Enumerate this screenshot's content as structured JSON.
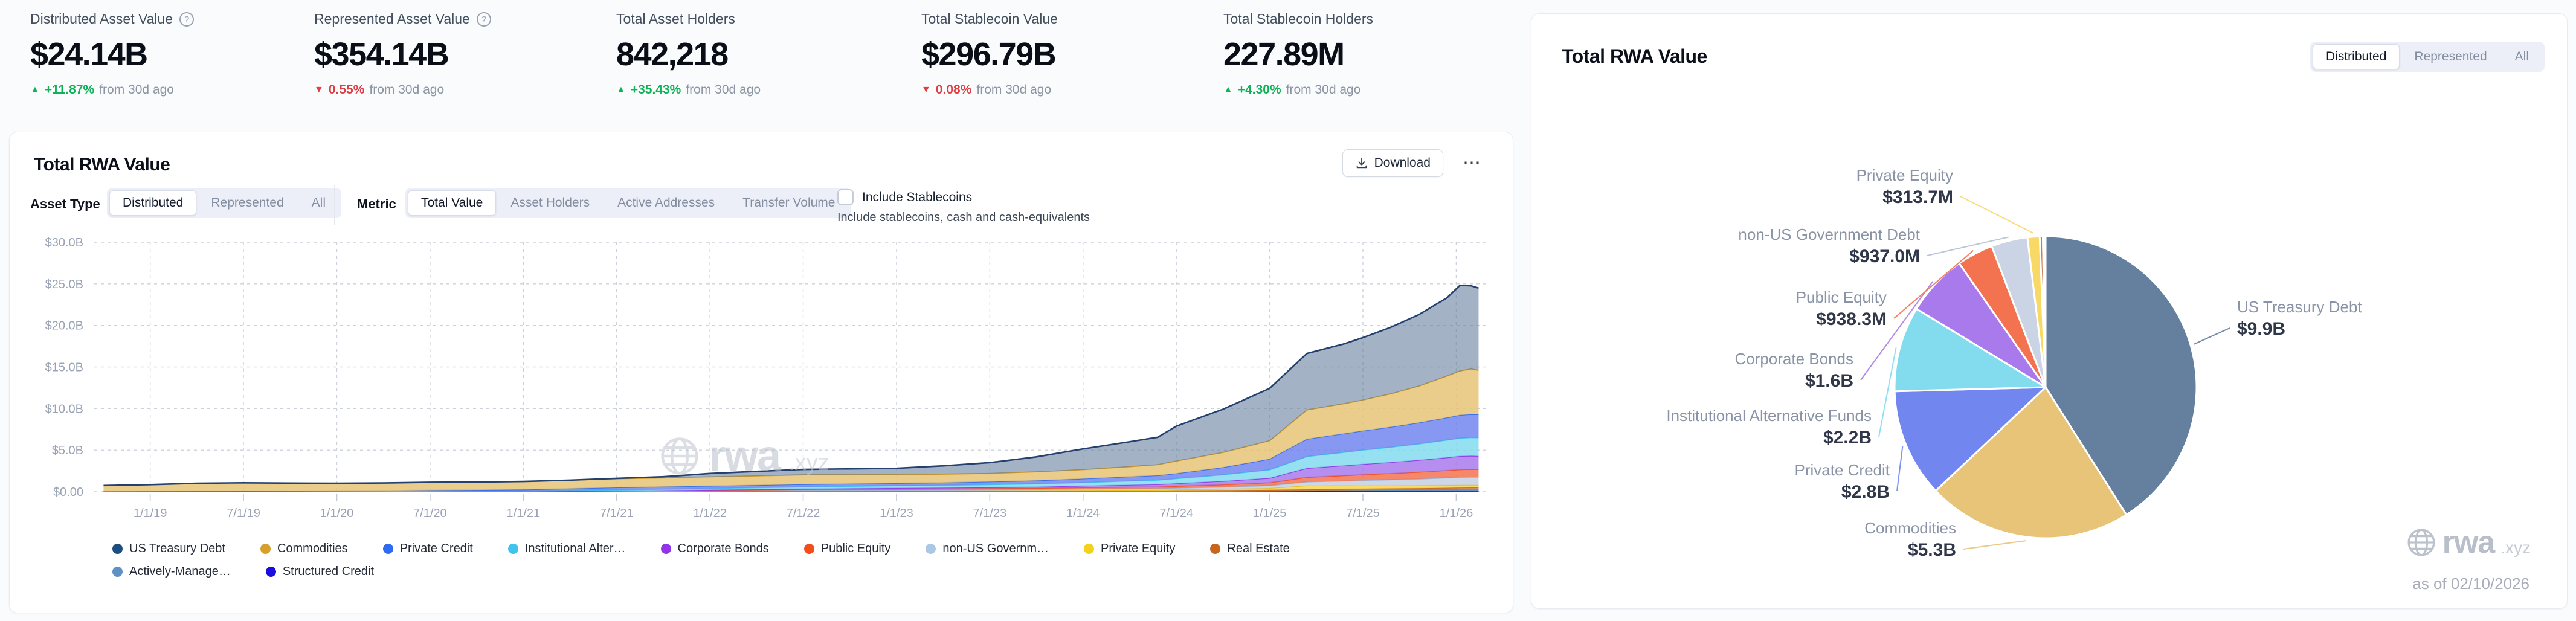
{
  "stats": [
    {
      "label": "Distributed Asset Value",
      "info_icon": true,
      "value": "$24.14B",
      "delta": {
        "direction": "up",
        "value": "+11.87%",
        "suffix": "from 30d ago"
      }
    },
    {
      "label": "Represented Asset Value",
      "info_icon": true,
      "value": "$354.14B",
      "delta": {
        "direction": "down",
        "value": "0.55%",
        "suffix": "from 30d ago"
      }
    },
    {
      "label": "Total Asset Holders",
      "info_icon": false,
      "value": "842,218",
      "delta": {
        "direction": "up",
        "value": "+35.43%",
        "suffix": "from 30d ago"
      }
    },
    {
      "label": "Total Stablecoin Value",
      "info_icon": false,
      "value": "$296.79B",
      "delta": {
        "direction": "down",
        "value": "0.08%",
        "suffix": "from 30d ago"
      }
    },
    {
      "label": "Total Stablecoin Holders",
      "info_icon": false,
      "value": "227.89M",
      "delta": {
        "direction": "up",
        "value": "+4.30%",
        "suffix": "from 30d ago"
      }
    }
  ],
  "colors": {
    "up": "#0fb257",
    "down": "#e03e43",
    "grid": "#ccd1da",
    "axis_text": "#9aa3b5"
  },
  "left_card": {
    "title": "Total RWA Value",
    "download_button": "Download",
    "menu_button": "⋯",
    "asset_type": {
      "label": "Asset Type",
      "options": [
        "Distributed",
        "Represented",
        "All"
      ],
      "selected": "Distributed"
    },
    "metric": {
      "label": "Metric",
      "options": [
        "Total Value",
        "Asset Holders",
        "Active Addresses",
        "Transfer Volume"
      ],
      "selected": "Total Value"
    },
    "stablecoin_checkbox": {
      "label": "Include Stablecoins",
      "caption": "Include stablecoins, cash and cash-equivalents",
      "checked": false
    },
    "watermark": {
      "text": "rwa",
      "suffix": ".xyz"
    }
  },
  "right_card": {
    "title": "Total RWA Value",
    "toggle": {
      "options": [
        "Distributed",
        "Represented",
        "All"
      ],
      "selected": "Distributed"
    },
    "watermark": {
      "text": "rwa",
      "suffix": ".xyz"
    },
    "as_of": "as of 02/10/2026"
  },
  "chart_data": [
    {
      "type": "area",
      "stacked": true,
      "grid": true,
      "title": "Total RWA Value",
      "ylim": [
        0,
        30
      ],
      "y_ticks": [
        {
          "v": 30,
          "label": "$30.0B"
        },
        {
          "v": 25,
          "label": "$25.0B"
        },
        {
          "v": 20,
          "label": "$20.0B"
        },
        {
          "v": 15,
          "label": "$15.0B"
        },
        {
          "v": 10,
          "label": "$10.0B"
        },
        {
          "v": 5,
          "label": "$5.0B"
        },
        {
          "v": 0,
          "label": "$0.00"
        }
      ],
      "x_range": [
        2018.7,
        2026.18
      ],
      "x_ticks": [
        {
          "v": 2019.0,
          "label": "1/1/19"
        },
        {
          "v": 2019.5,
          "label": "7/1/19"
        },
        {
          "v": 2020.0,
          "label": "1/1/20"
        },
        {
          "v": 2020.5,
          "label": "7/1/20"
        },
        {
          "v": 2021.0,
          "label": "1/1/21"
        },
        {
          "v": 2021.5,
          "label": "7/1/21"
        },
        {
          "v": 2022.0,
          "label": "1/1/22"
        },
        {
          "v": 2022.5,
          "label": "7/1/22"
        },
        {
          "v": 2023.0,
          "label": "1/1/23"
        },
        {
          "v": 2023.5,
          "label": "7/1/23"
        },
        {
          "v": 2024.0,
          "label": "1/1/24"
        },
        {
          "v": 2024.5,
          "label": "7/1/24"
        },
        {
          "v": 2025.0,
          "label": "1/1/25"
        },
        {
          "v": 2025.5,
          "label": "7/1/25"
        },
        {
          "v": 2026.0,
          "label": "1/1/26"
        }
      ],
      "x": [
        2018.75,
        2019.0,
        2019.25,
        2019.5,
        2019.75,
        2020.0,
        2020.25,
        2020.5,
        2020.75,
        2021.0,
        2021.25,
        2021.5,
        2021.75,
        2022.0,
        2022.25,
        2022.5,
        2022.75,
        2023.0,
        2023.25,
        2023.5,
        2023.75,
        2024.0,
        2024.25,
        2024.4,
        2024.5,
        2024.75,
        2025.0,
        2025.2,
        2025.4,
        2025.5,
        2025.65,
        2025.8,
        2025.95,
        2026.02,
        2026.08,
        2026.12
      ],
      "series": [
        {
          "name": "Structured Credit",
          "color": "#1a0de0",
          "fill": "rgba(26,13,224,0.85)",
          "values": [
            0,
            0,
            0,
            0,
            0,
            0,
            0,
            0,
            0,
            0,
            0,
            0,
            0,
            0,
            0,
            0,
            0,
            0,
            0,
            0,
            0,
            0.01,
            0.01,
            0.01,
            0.02,
            0.04,
            0.06,
            0.07,
            0.08,
            0.09,
            0.1,
            0.1,
            0.11,
            0.12,
            0.12,
            0.12
          ]
        },
        {
          "name": "Actively-Managed",
          "color": "#5e91c4",
          "fill": "rgba(94,145,196,0.8)",
          "values": [
            0,
            0,
            0,
            0,
            0,
            0,
            0,
            0,
            0,
            0,
            0,
            0,
            0,
            0,
            0,
            0,
            0,
            0,
            0,
            0,
            0,
            0,
            0,
            0,
            0.01,
            0.02,
            0.03,
            0.06,
            0.08,
            0.1,
            0.12,
            0.14,
            0.16,
            0.17,
            0.18,
            0.18
          ]
        },
        {
          "name": "Real Estate",
          "color": "#c9661e",
          "fill": "rgba(201,122,62,0.85)",
          "values": [
            0,
            0,
            0,
            0,
            0,
            0.01,
            0.01,
            0.02,
            0.02,
            0.03,
            0.04,
            0.05,
            0.07,
            0.1,
            0.12,
            0.13,
            0.12,
            0.1,
            0.1,
            0.1,
            0.1,
            0.11,
            0.12,
            0.12,
            0.13,
            0.13,
            0.14,
            0.15,
            0.16,
            0.17,
            0.17,
            0.18,
            0.19,
            0.2,
            0.2,
            0.2
          ]
        },
        {
          "name": "Private Equity",
          "color": "#e3c21c",
          "fill": "rgba(248,215,90,0.9)",
          "values": [
            0,
            0,
            0,
            0,
            0,
            0,
            0,
            0,
            0,
            0,
            0,
            0,
            0.01,
            0.02,
            0.02,
            0.03,
            0.04,
            0.05,
            0.05,
            0.06,
            0.07,
            0.08,
            0.09,
            0.1,
            0.1,
            0.15,
            0.2,
            0.45,
            0.42,
            0.38,
            0.35,
            0.33,
            0.32,
            0.32,
            0.31,
            0.31
          ]
        },
        {
          "name": "non-US Government Debt",
          "color": "#9fb4d6",
          "fill": "rgba(202,212,228,0.92)",
          "values": [
            0,
            0,
            0,
            0,
            0,
            0,
            0,
            0,
            0,
            0,
            0,
            0.01,
            0.02,
            0.03,
            0.04,
            0.05,
            0.06,
            0.07,
            0.08,
            0.1,
            0.11,
            0.13,
            0.15,
            0.16,
            0.18,
            0.22,
            0.3,
            0.45,
            0.55,
            0.62,
            0.7,
            0.78,
            0.88,
            0.92,
            0.94,
            0.94
          ]
        },
        {
          "name": "Public Equity",
          "color": "#f44d1c",
          "fill": "rgba(243,114,80,0.85)",
          "values": [
            0,
            0,
            0,
            0,
            0,
            0,
            0,
            0,
            0.01,
            0.01,
            0.02,
            0.03,
            0.04,
            0.05,
            0.06,
            0.08,
            0.1,
            0.12,
            0.13,
            0.14,
            0.15,
            0.17,
            0.19,
            0.2,
            0.22,
            0.28,
            0.35,
            0.55,
            0.65,
            0.7,
            0.75,
            0.82,
            0.9,
            0.93,
            0.94,
            0.94
          ]
        },
        {
          "name": "Corporate Bonds",
          "color": "#9135e8",
          "fill": "rgba(169,122,236,0.85)",
          "values": [
            0,
            0,
            0,
            0,
            0,
            0,
            0,
            0,
            0,
            0,
            0.01,
            0.01,
            0.02,
            0.03,
            0.04,
            0.05,
            0.07,
            0.1,
            0.11,
            0.12,
            0.15,
            0.2,
            0.25,
            0.28,
            0.33,
            0.42,
            0.55,
            1.1,
            1.2,
            1.25,
            1.35,
            1.45,
            1.55,
            1.62,
            1.62,
            1.6
          ]
        },
        {
          "name": "Institutional Alternative Funds",
          "color": "#40c4ee",
          "fill": "rgba(131,220,238,0.85)",
          "values": [
            0.04,
            0.05,
            0.05,
            0.06,
            0.06,
            0.07,
            0.07,
            0.08,
            0.08,
            0.09,
            0.1,
            0.12,
            0.14,
            0.16,
            0.2,
            0.24,
            0.26,
            0.28,
            0.3,
            0.33,
            0.36,
            0.4,
            0.48,
            0.52,
            0.58,
            0.78,
            1.0,
            1.4,
            1.6,
            1.7,
            1.82,
            1.95,
            2.1,
            2.16,
            2.2,
            2.2
          ]
        },
        {
          "name": "Private Credit",
          "color": "#2e6bf0",
          "fill": "rgba(113,134,239,0.85)",
          "values": [
            0,
            0,
            0.01,
            0.01,
            0.02,
            0.03,
            0.05,
            0.08,
            0.1,
            0.13,
            0.2,
            0.28,
            0.3,
            0.3,
            0.3,
            0.3,
            0.3,
            0.3,
            0.32,
            0.35,
            0.4,
            0.45,
            0.52,
            0.56,
            0.62,
            0.88,
            1.3,
            2.1,
            2.25,
            2.32,
            2.42,
            2.55,
            2.7,
            2.78,
            2.8,
            2.8
          ]
        },
        {
          "name": "Commodities",
          "color": "#c9952b",
          "fill": "rgba(231,196,119,0.85)",
          "values": [
            0.7,
            0.8,
            0.95,
            1.0,
            0.95,
            0.9,
            0.92,
            0.95,
            0.95,
            0.97,
            1.0,
            1.05,
            1.05,
            1.1,
            1.12,
            1.15,
            1.1,
            1.05,
            1.02,
            1.0,
            1.05,
            1.1,
            1.2,
            1.3,
            1.5,
            1.8,
            2.2,
            3.5,
            3.6,
            3.7,
            4.0,
            4.4,
            5.0,
            5.3,
            5.45,
            5.3
          ]
        },
        {
          "name": "US Treasury Debt",
          "color": "#23406e",
          "fill": "rgba(101,128,159,0.6)",
          "values": [
            0,
            0,
            0,
            0,
            0,
            0,
            0,
            0,
            0,
            0,
            0.02,
            0.05,
            0.15,
            0.4,
            0.55,
            0.65,
            0.7,
            0.75,
            1.0,
            1.3,
            1.8,
            2.5,
            3.0,
            3.3,
            4.2,
            5.2,
            6.3,
            6.8,
            7.2,
            7.5,
            8.0,
            8.6,
            9.4,
            10.3,
            10.0,
            9.9
          ]
        }
      ],
      "legend": [
        {
          "label": "US Treasury Debt",
          "color": "#1d4e80"
        },
        {
          "label": "Commodities",
          "color": "#d7a02a"
        },
        {
          "label": "Private Credit",
          "color": "#2e6bf0"
        },
        {
          "label": "Institutional Alter…",
          "color": "#40c4ee"
        },
        {
          "label": "Corporate Bonds",
          "color": "#9135e8"
        },
        {
          "label": "Public Equity",
          "color": "#f44d1c"
        },
        {
          "label": "non-US Governm…",
          "color": "#aac7e4"
        },
        {
          "label": "Private Equity",
          "color": "#f2d21c"
        },
        {
          "label": "Real Estate",
          "color": "#c9661e"
        },
        {
          "label": "Actively-Manage…",
          "color": "#5e91c4"
        },
        {
          "label": "Structured Credit",
          "color": "#1a0de0"
        }
      ]
    },
    {
      "type": "pie",
      "title": "Total RWA Value",
      "as_of": "as of 02/10/2026",
      "slices": [
        {
          "name": "US Treasury Debt",
          "value": 9.9,
          "value_label": "$9.9B",
          "color": "#65809f"
        },
        {
          "name": "Commodities",
          "value": 5.3,
          "value_label": "$5.3B",
          "color": "#e7c477"
        },
        {
          "name": "Private Credit",
          "value": 2.8,
          "value_label": "$2.8B",
          "color": "#7186ef"
        },
        {
          "name": "Institutional Alternative Funds",
          "value": 2.2,
          "value_label": "$2.2B",
          "color": "#83dcee"
        },
        {
          "name": "Corporate Bonds",
          "value": 1.6,
          "value_label": "$1.6B",
          "color": "#a97aec"
        },
        {
          "name": "Public Equity",
          "value": 0.9383,
          "value_label": "$938.3M",
          "color": "#f37250"
        },
        {
          "name": "non-US Government Debt",
          "value": 0.937,
          "value_label": "$937.0M",
          "color": "#cad4e4"
        },
        {
          "name": "Private Equity",
          "value": 0.3137,
          "value_label": "$313.7M",
          "color": "#f9d965"
        },
        {
          "name": "Real Estate",
          "value": 0.08,
          "value_label": null,
          "color": "#c97d4e"
        },
        {
          "name": "Actively-Managed",
          "value": 0.05,
          "value_label": null,
          "color": "#9db3cb"
        },
        {
          "name": "Structured Credit",
          "value": 0.02,
          "value_label": null,
          "color": "#27489e"
        }
      ]
    }
  ]
}
